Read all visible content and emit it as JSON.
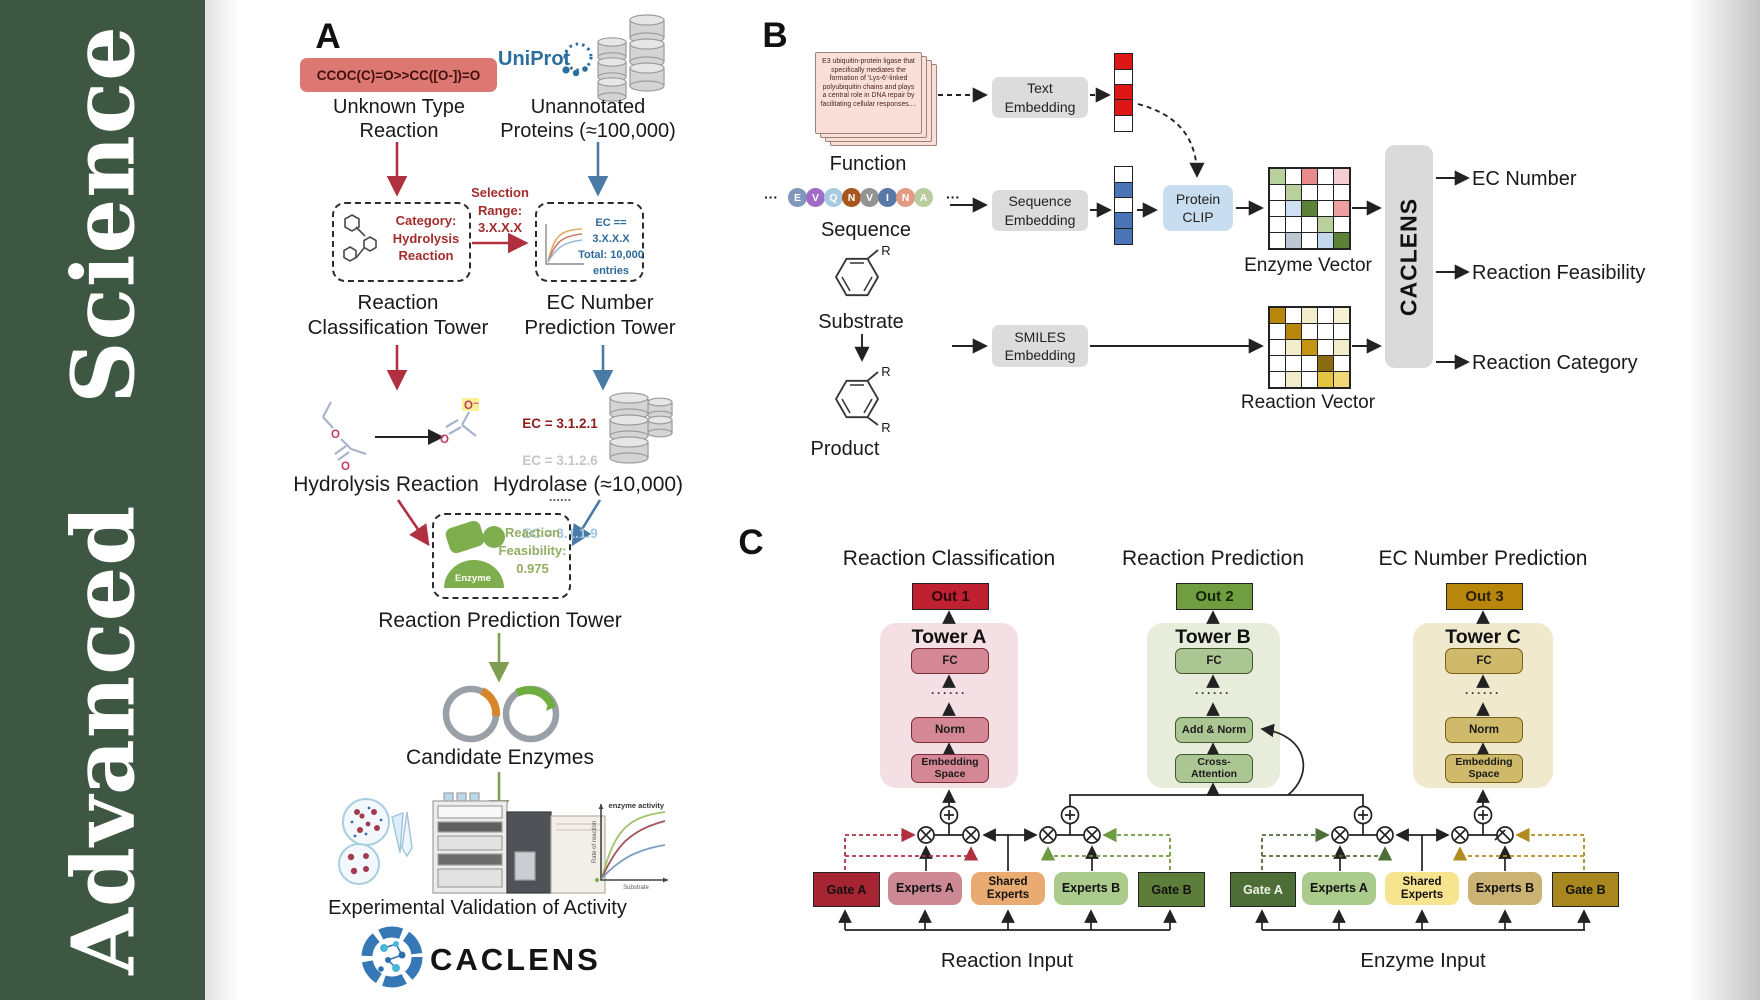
{
  "sidebar": {
    "journal": "Advanced  Science",
    "bg_color": "#3e5742"
  },
  "panelA": {
    "label": "A",
    "smiles": "CCOC(C)=O>>CC([O-])=O",
    "unknown_type": "Unknown Type\nReaction",
    "uniprot": "UniProt",
    "unannotated": "Unannotated\nProteins (≈100,000)",
    "category": "Category:\nHydrolysis\nReaction",
    "selection": "Selection\nRange:\n3.X.X.X",
    "ec_filter": "EC == 3.X.X.X\nTotal: 10,000\nentries",
    "tower1": "Reaction\nClassification Tower",
    "tower2": "EC Number\nPrediction Tower",
    "hydrolysis": "Hydrolysis Reaction",
    "ec_list": [
      {
        "text": "EC = 3.1.2.1",
        "color": "#8f1d1d"
      },
      {
        "text": "EC = 3.1.2.6",
        "color": "#c6c6c6"
      },
      {
        "text": "......",
        "color": "#666666"
      },
      {
        "text": "EC = 3.1.1.9",
        "color": "#a9c6df"
      }
    ],
    "hydrolase": "Hydrolase (≈10,000)",
    "enzyme": "Enzyme",
    "feasibility": "Reaction\nFeasibility:\n0.975",
    "tower3": "Reaction Prediction Tower",
    "candidate": "Candidate Enzymes",
    "plot": {
      "annotation": "enzyme activity",
      "ylabel": "Rate of reaction",
      "xlabel": "Substrate"
    },
    "validation": "Experimental Validation of Activity",
    "brand": "CACLENS"
  },
  "panelB": {
    "label": "B",
    "function_card": "E3 ubiquitin-protein ligase that specifically mediates the formation of 'Lys-6'-linked polyubiquitin chains and plays a central role in DNA repair by facilitating cellular responses....",
    "function_label": "Function",
    "ellipsis": "···",
    "sequence_label": "Sequence",
    "letters": [
      {
        "t": "E",
        "c": "#8096bb"
      },
      {
        "t": "V",
        "c": "#a06cc8"
      },
      {
        "t": "Q",
        "c": "#a9cbe2"
      },
      {
        "t": "N",
        "c": "#a9561e"
      },
      {
        "t": "V",
        "c": "#939393"
      },
      {
        "t": "I",
        "c": "#5878a8"
      },
      {
        "t": "N",
        "c": "#e39a82"
      },
      {
        "t": "A",
        "c": "#b9cc9d"
      }
    ],
    "substrate": "Substrate",
    "product": "Product",
    "r": "R",
    "text_embedding": "Text\nEmbedding",
    "sequence_embedding": "Sequence\nEmbedding",
    "smiles_embedding": "SMILES\nEmbedding",
    "protein_clip": "Protein\nCLIP",
    "text_vector": [
      "#e01616",
      "#ffffff",
      "#e01616",
      "#e01616",
      "#ffffff"
    ],
    "seq_vector": [
      "#ffffff",
      "#4a74b8",
      "#ffffff",
      "#4a74b8",
      "#4a74b8"
    ],
    "enzyme_vector_label": "Enzyme Vector",
    "reaction_vector_label": "Reaction Vector",
    "enzyme_grid": [
      [
        "#b8d09c",
        "#ffffff",
        "#e98b8b",
        "#ffffff",
        "#f6cdd3"
      ],
      [
        "#ffffff",
        "#b8d09c",
        "#ffffff",
        "#ffffff",
        "#ffffff"
      ],
      [
        "#ffffff",
        "#cfe0f2",
        "#5e8138",
        "#ffffff",
        "#ef9f9f"
      ],
      [
        "#ffffff",
        "#ffffff",
        "#ffffff",
        "#b8d09c",
        "#ffffff"
      ],
      [
        "#ffffff",
        "#bcc8d4",
        "#ffffff",
        "#c3d8ec",
        "#5e8138"
      ]
    ],
    "reaction_grid": [
      [
        "#b8860b",
        "#ffffff",
        "#f3ecca",
        "#ffffff",
        "#f6efd2"
      ],
      [
        "#ffffff",
        "#b8860b",
        "#ffffff",
        "#ffffff",
        "#ffffff"
      ],
      [
        "#ffffff",
        "#f3ecca",
        "#c49413",
        "#ffffff",
        "#f3ecca"
      ],
      [
        "#ffffff",
        "#ffffff",
        "#ffffff",
        "#8a6b10",
        "#ffffff"
      ],
      [
        "#ffffff",
        "#f3ecca",
        "#ffffff",
        "#e3c33f",
        "#f0d878"
      ]
    ],
    "caclens": "CACLENS",
    "outputs": [
      "EC Number",
      "Reaction Feasibility",
      "Reaction Category"
    ]
  },
  "panelC": {
    "label": "C",
    "headers": [
      "Reaction Classification",
      "Reaction Prediction",
      "EC Number Prediction"
    ],
    "outs": [
      "Out 1",
      "Out 2",
      "Out 3"
    ],
    "towers": [
      {
        "name": "Tower A",
        "fc": "FC",
        "dots": "······",
        "mid": "Norm",
        "bottom": "Embedding\nSpace"
      },
      {
        "name": "Tower B",
        "fc": "FC",
        "dots": "······",
        "mid": "Add & Norm",
        "bottom": "Cross-\nAttention"
      },
      {
        "name": "Tower C",
        "fc": "FC",
        "dots": "······",
        "mid": "Norm",
        "bottom": "Embedding\nSpace"
      }
    ],
    "moe": {
      "reaction": {
        "gateA": "Gate A",
        "expertsA": "Experts A",
        "shared": "Shared\nExperts",
        "expertsB": "Experts B",
        "gateB": "Gate B",
        "input": "Reaction Input"
      },
      "enzyme": {
        "gateA": "Gate A",
        "expertsA": "Experts A",
        "shared": "Shared\nExperts",
        "expertsB": "Experts B",
        "gateB": "Gate B",
        "input": "Enzyme Input"
      }
    },
    "colors": {
      "out1": "#c02131",
      "out2": "#6f9d3f",
      "out3": "#b8860b",
      "towerA_bg": "#f4e0e4",
      "towerB_bg": "#e7edda",
      "towerC_bg": "#f1e9ce",
      "gateA_reaction": "#a52533",
      "gateB_reaction": "#5d7d3b",
      "gateA_enzyme": "#4e6e38",
      "gateB_enzyme": "#a8871f"
    }
  }
}
